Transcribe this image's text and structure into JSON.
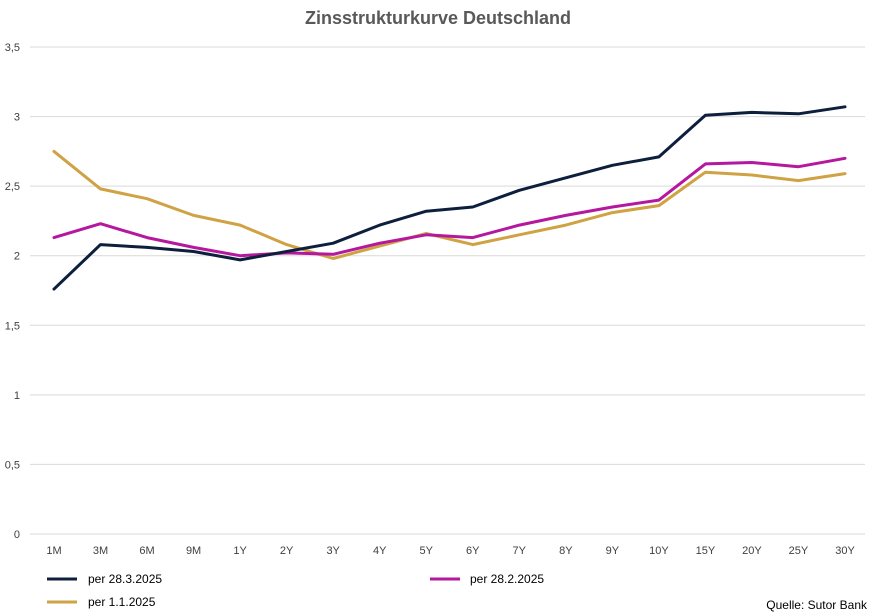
{
  "chart_data": {
    "type": "line",
    "title": "Zinsstrukturkurve Deutschland",
    "categories": [
      "1M",
      "3M",
      "6M",
      "9M",
      "1Y",
      "2Y",
      "3Y",
      "4Y",
      "5Y",
      "6Y",
      "7Y",
      "8Y",
      "9Y",
      "10Y",
      "15Y",
      "20Y",
      "25Y",
      "30Y"
    ],
    "ylim": [
      0,
      3.5
    ],
    "yticks": [
      "0",
      "0,5",
      "1",
      "1,5",
      "2",
      "2,5",
      "3",
      "3,5"
    ],
    "ytick_values": [
      0,
      0.5,
      1,
      1.5,
      2,
      2.5,
      3,
      3.5
    ],
    "grid": true,
    "legend_position": "bottom",
    "series": [
      {
        "name": "per 28.3.2025",
        "color": "#0d1f3c",
        "values": [
          1.76,
          2.08,
          2.06,
          2.03,
          1.97,
          2.03,
          2.09,
          2.22,
          2.32,
          2.35,
          2.47,
          2.56,
          2.65,
          2.71,
          3.01,
          3.03,
          3.02,
          3.07
        ]
      },
      {
        "name": "per 28.2.2025",
        "color": "#b5179e",
        "values": [
          2.13,
          2.23,
          2.13,
          2.06,
          2.0,
          2.02,
          2.01,
          2.09,
          2.15,
          2.13,
          2.22,
          2.29,
          2.35,
          2.4,
          2.66,
          2.67,
          2.64,
          2.7
        ]
      },
      {
        "name": "per 1.1.2025",
        "color": "#cfa244",
        "values": [
          2.75,
          2.48,
          2.41,
          2.29,
          2.22,
          2.08,
          1.98,
          2.07,
          2.16,
          2.08,
          2.15,
          2.22,
          2.31,
          2.36,
          2.6,
          2.58,
          2.54,
          2.59
        ]
      }
    ],
    "source": "Quelle: Sutor Bank"
  }
}
